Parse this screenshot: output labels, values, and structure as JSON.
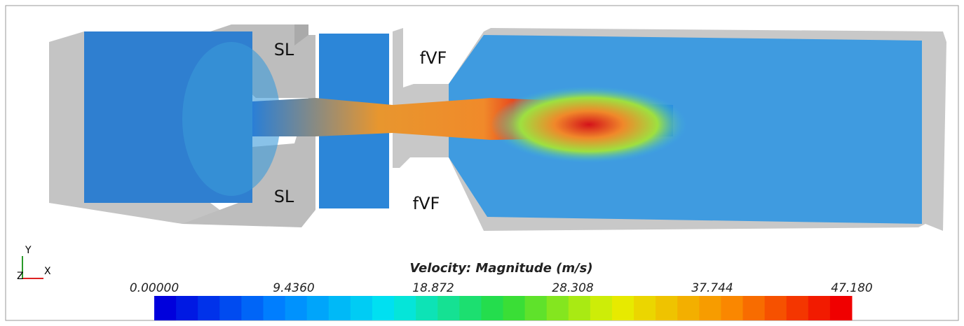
{
  "labels": {
    "upper_left_region": "SL",
    "lower_left_region": "SL",
    "upper_right_region": "fVF",
    "lower_right_region": "fVF"
  },
  "axes_triad": {
    "y": "Y",
    "z": "Z",
    "x": "X"
  },
  "colorbar": {
    "title": "Velocity: Magnitude (m/s)",
    "ticks": [
      "0.00000",
      "9.4360",
      "18.872",
      "28.308",
      "37.744",
      "47.180"
    ]
  }
}
